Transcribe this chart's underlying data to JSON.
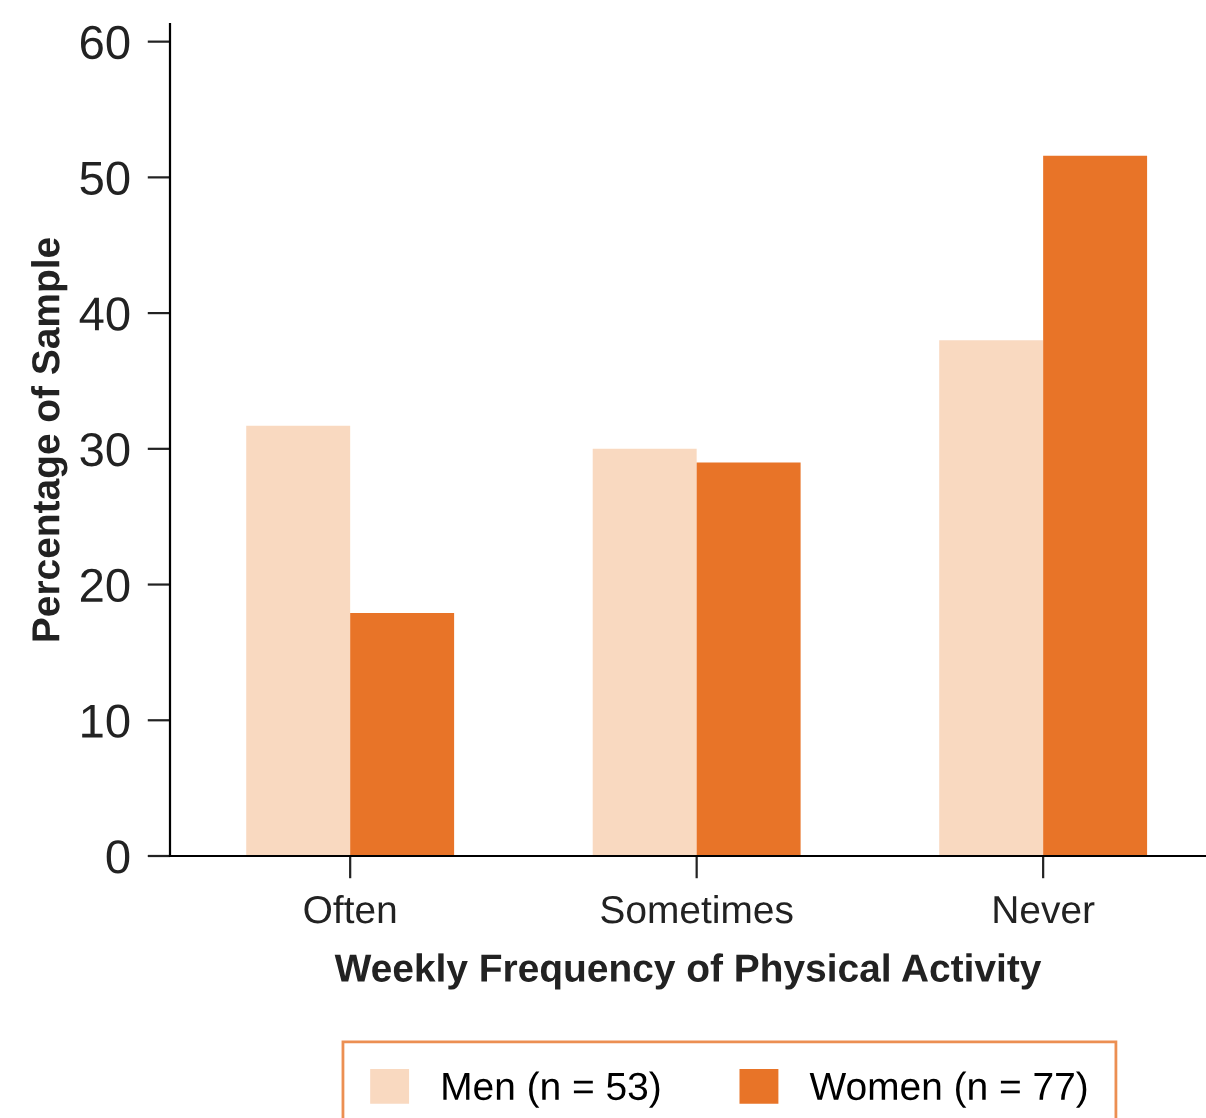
{
  "chart_data": {
    "type": "bar",
    "xlabel": "Weekly Frequency of Physical Activity",
    "ylabel": "Percentage of Sample",
    "categories": [
      "Often",
      "Sometimes",
      "Never"
    ],
    "series": [
      {
        "name": "Men (n = 53)",
        "color": "#f9d9c0",
        "values": [
          31.7,
          30.0,
          38.0
        ]
      },
      {
        "name": "Women (n = 77)",
        "color": "#e87428",
        "values": [
          17.9,
          29.0,
          51.6
        ]
      }
    ],
    "ylim": [
      0,
      61.3
    ],
    "yticks": [
      0,
      10,
      20,
      30,
      40,
      50,
      60
    ],
    "grid": false,
    "legend": "bottom"
  }
}
